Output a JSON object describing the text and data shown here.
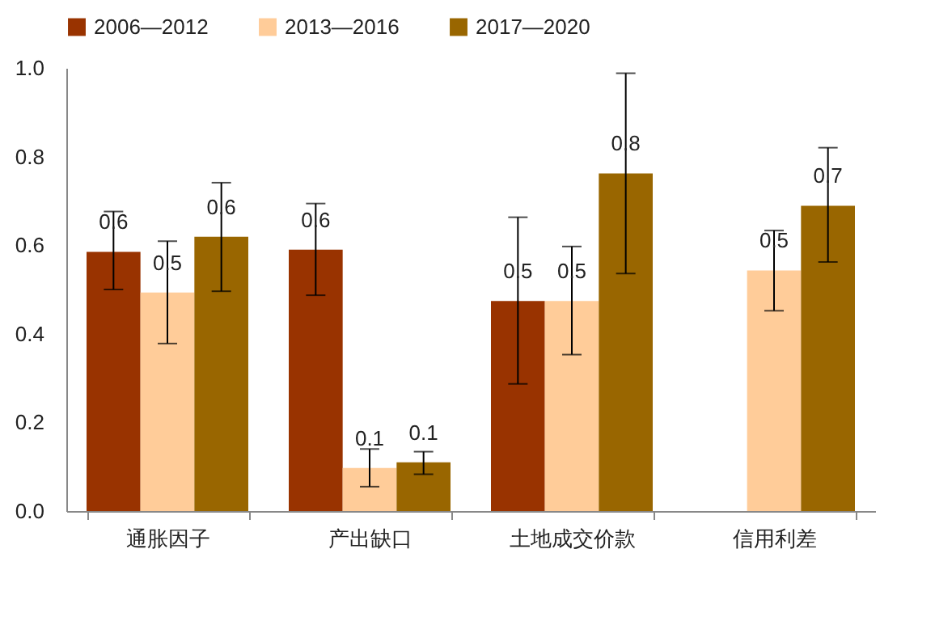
{
  "chart_data": {
    "type": "bar",
    "categories": [
      "通胀因子",
      "产出缺口",
      "土地成交价款",
      "信用利差"
    ],
    "series": [
      {
        "name": "2006—2012",
        "color": "#993300",
        "values": [
          0.585,
          0.59,
          0.474,
          null
        ],
        "errors": [
          [
            0.5,
            0.676
          ],
          [
            0.487,
            0.694
          ],
          [
            0.287,
            0.663
          ],
          null
        ],
        "value_labels": [
          "0.6",
          "0.6",
          "0.5",
          null
        ]
      },
      {
        "name": "2013—2016",
        "color": "#ffcc99",
        "values": [
          0.493,
          0.097,
          0.474,
          0.543
        ],
        "errors": [
          [
            0.378,
            0.609
          ],
          [
            0.055,
            0.14
          ],
          [
            0.353,
            0.597
          ],
          [
            0.452,
            0.633
          ]
        ],
        "value_labels": [
          "0.5",
          "0.1",
          "0.5",
          "0.5"
        ]
      },
      {
        "name": "2017—2020",
        "color": "#996600",
        "values": [
          0.619,
          0.11,
          0.762,
          0.689
        ],
        "errors": [
          [
            0.496,
            0.741
          ],
          [
            0.083,
            0.134
          ],
          [
            0.536,
            0.988
          ],
          [
            0.562,
            0.82
          ]
        ],
        "value_labels": [
          "0.6",
          "0.1",
          "0.8",
          "0.7"
        ]
      }
    ],
    "ylim": [
      0,
      1
    ],
    "yticks": [
      {
        "value": 0,
        "label": "0.0"
      },
      0.2,
      0.4,
      0.6,
      0.8,
      {
        "value": 1,
        "label": "1.0"
      }
    ],
    "grid": false,
    "legend": "top"
  }
}
